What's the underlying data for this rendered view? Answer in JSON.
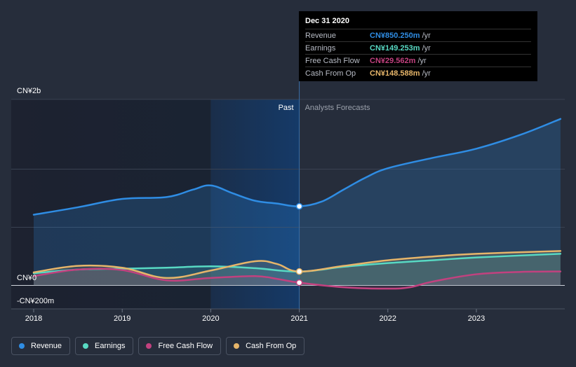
{
  "chart_data": {
    "type": "line",
    "title": "",
    "xlabel": "",
    "ylabel": "",
    "ylim": [
      -200,
      2000
    ],
    "xlim": [
      2017.75,
      2023.95
    ],
    "y_axis_labels": [
      {
        "value": 2000,
        "label": "CN¥2b"
      },
      {
        "value": 0,
        "label": "CN¥0"
      },
      {
        "value": -200,
        "label": "-CN¥200m"
      }
    ],
    "x_ticks": [
      {
        "value": 2018,
        "label": "2018"
      },
      {
        "value": 2019,
        "label": "2019"
      },
      {
        "value": 2020,
        "label": "2020"
      },
      {
        "value": 2021,
        "label": "2021"
      },
      {
        "value": 2022,
        "label": "2022"
      },
      {
        "value": 2023,
        "label": "2023"
      }
    ],
    "divider_x": 2021.0,
    "past_label": "Past",
    "forecast_label": "Analysts Forecasts",
    "highlight_start": 2020.0,
    "series": [
      {
        "name": "Revenue",
        "color": "#2f8de4",
        "points": [
          [
            2018.0,
            760
          ],
          [
            2018.5,
            840
          ],
          [
            2019.0,
            930
          ],
          [
            2019.5,
            950
          ],
          [
            2019.8,
            1030
          ],
          [
            2020.0,
            1075
          ],
          [
            2020.25,
            990
          ],
          [
            2020.5,
            910
          ],
          [
            2020.75,
            880
          ],
          [
            2021.0,
            850
          ],
          [
            2021.25,
            900
          ],
          [
            2021.5,
            1030
          ],
          [
            2021.75,
            1160
          ],
          [
            2022.0,
            1260
          ],
          [
            2022.5,
            1370
          ],
          [
            2023.0,
            1470
          ],
          [
            2023.5,
            1620
          ],
          [
            2023.95,
            1790
          ]
        ],
        "forecast_from": 2021.0
      },
      {
        "name": "Earnings",
        "color": "#58d9c3",
        "points": [
          [
            2018.0,
            130
          ],
          [
            2018.5,
            170
          ],
          [
            2019.0,
            180
          ],
          [
            2019.5,
            190
          ],
          [
            2020.0,
            205
          ],
          [
            2020.5,
            185
          ],
          [
            2021.0,
            149
          ],
          [
            2021.5,
            200
          ],
          [
            2022.0,
            240
          ],
          [
            2022.5,
            270
          ],
          [
            2023.0,
            300
          ],
          [
            2023.95,
            340
          ]
        ]
      },
      {
        "name": "Free Cash Flow",
        "color": "#c2417f",
        "points": [
          [
            2018.0,
            100
          ],
          [
            2018.5,
            170
          ],
          [
            2019.0,
            165
          ],
          [
            2019.5,
            55
          ],
          [
            2020.0,
            80
          ],
          [
            2020.5,
            100
          ],
          [
            2020.75,
            70
          ],
          [
            2021.0,
            30
          ],
          [
            2021.5,
            -20
          ],
          [
            2022.0,
            -35
          ],
          [
            2022.25,
            -20
          ],
          [
            2022.5,
            40
          ],
          [
            2023.0,
            120
          ],
          [
            2023.5,
            145
          ],
          [
            2023.95,
            150
          ]
        ]
      },
      {
        "name": "Cash From Op",
        "color": "#e6b56a",
        "points": [
          [
            2018.0,
            140
          ],
          [
            2018.5,
            210
          ],
          [
            2019.0,
            190
          ],
          [
            2019.5,
            80
          ],
          [
            2020.0,
            160
          ],
          [
            2020.5,
            260
          ],
          [
            2020.75,
            230
          ],
          [
            2021.0,
            149
          ],
          [
            2021.5,
            210
          ],
          [
            2022.0,
            270
          ],
          [
            2022.5,
            310
          ],
          [
            2023.0,
            340
          ],
          [
            2023.95,
            370
          ]
        ]
      }
    ]
  },
  "tooltip": {
    "date": "Dec 31 2020",
    "rows": [
      {
        "name": "Revenue",
        "value": "CN¥850.250m",
        "unit": "/yr",
        "color": "#2f8de4"
      },
      {
        "name": "Earnings",
        "value": "CN¥149.253m",
        "unit": "/yr",
        "color": "#58d9c3"
      },
      {
        "name": "Free Cash Flow",
        "value": "CN¥29.562m",
        "unit": "/yr",
        "color": "#c2417f"
      },
      {
        "name": "Cash From Op",
        "value": "CN¥148.588m",
        "unit": "/yr",
        "color": "#e6b56a"
      }
    ]
  },
  "legend": [
    {
      "label": "Revenue",
      "color": "#2f8de4"
    },
    {
      "label": "Earnings",
      "color": "#58d9c3"
    },
    {
      "label": "Free Cash Flow",
      "color": "#c2417f"
    },
    {
      "label": "Cash From Op",
      "color": "#e6b56a"
    }
  ]
}
